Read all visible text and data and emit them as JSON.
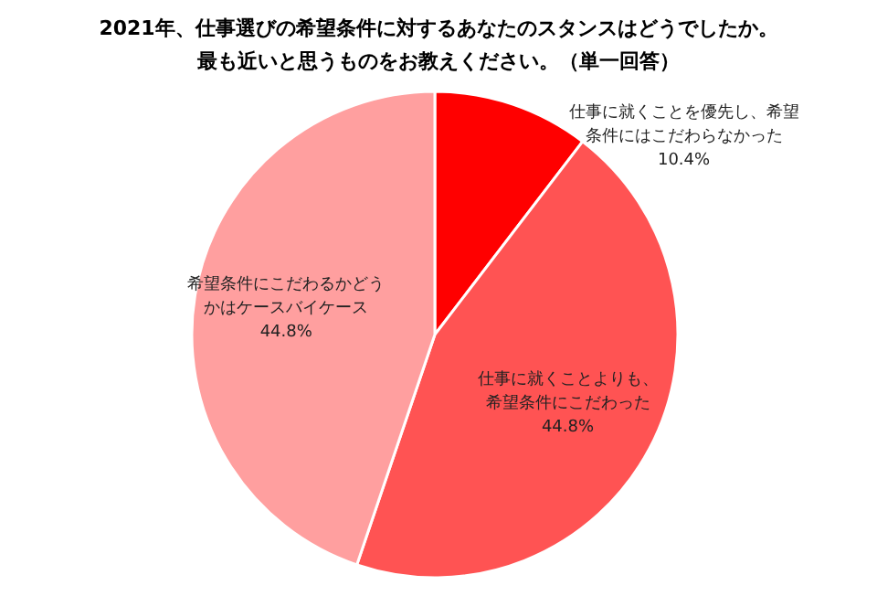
{
  "chart_data": {
    "type": "pie",
    "title": "2021年、仕事選びの希望条件に対するあなたのスタンスはどうでしたか。",
    "subtitle": "最も近いと思うものをお教えください。（単一回答）",
    "categories": [
      "仕事に就くことを優先し、希望条件にはこだわらなかった",
      "仕事に就くことよりも、希望条件にこだわった",
      "希望条件にこだわるかどうかはケースバイケース"
    ],
    "values": [
      10.4,
      44.8,
      44.8
    ],
    "value_labels": [
      "10.4%",
      "44.8%",
      "44.8%"
    ],
    "colors": [
      "#ff0000",
      "#ff5353",
      "#ff9f9f"
    ]
  }
}
